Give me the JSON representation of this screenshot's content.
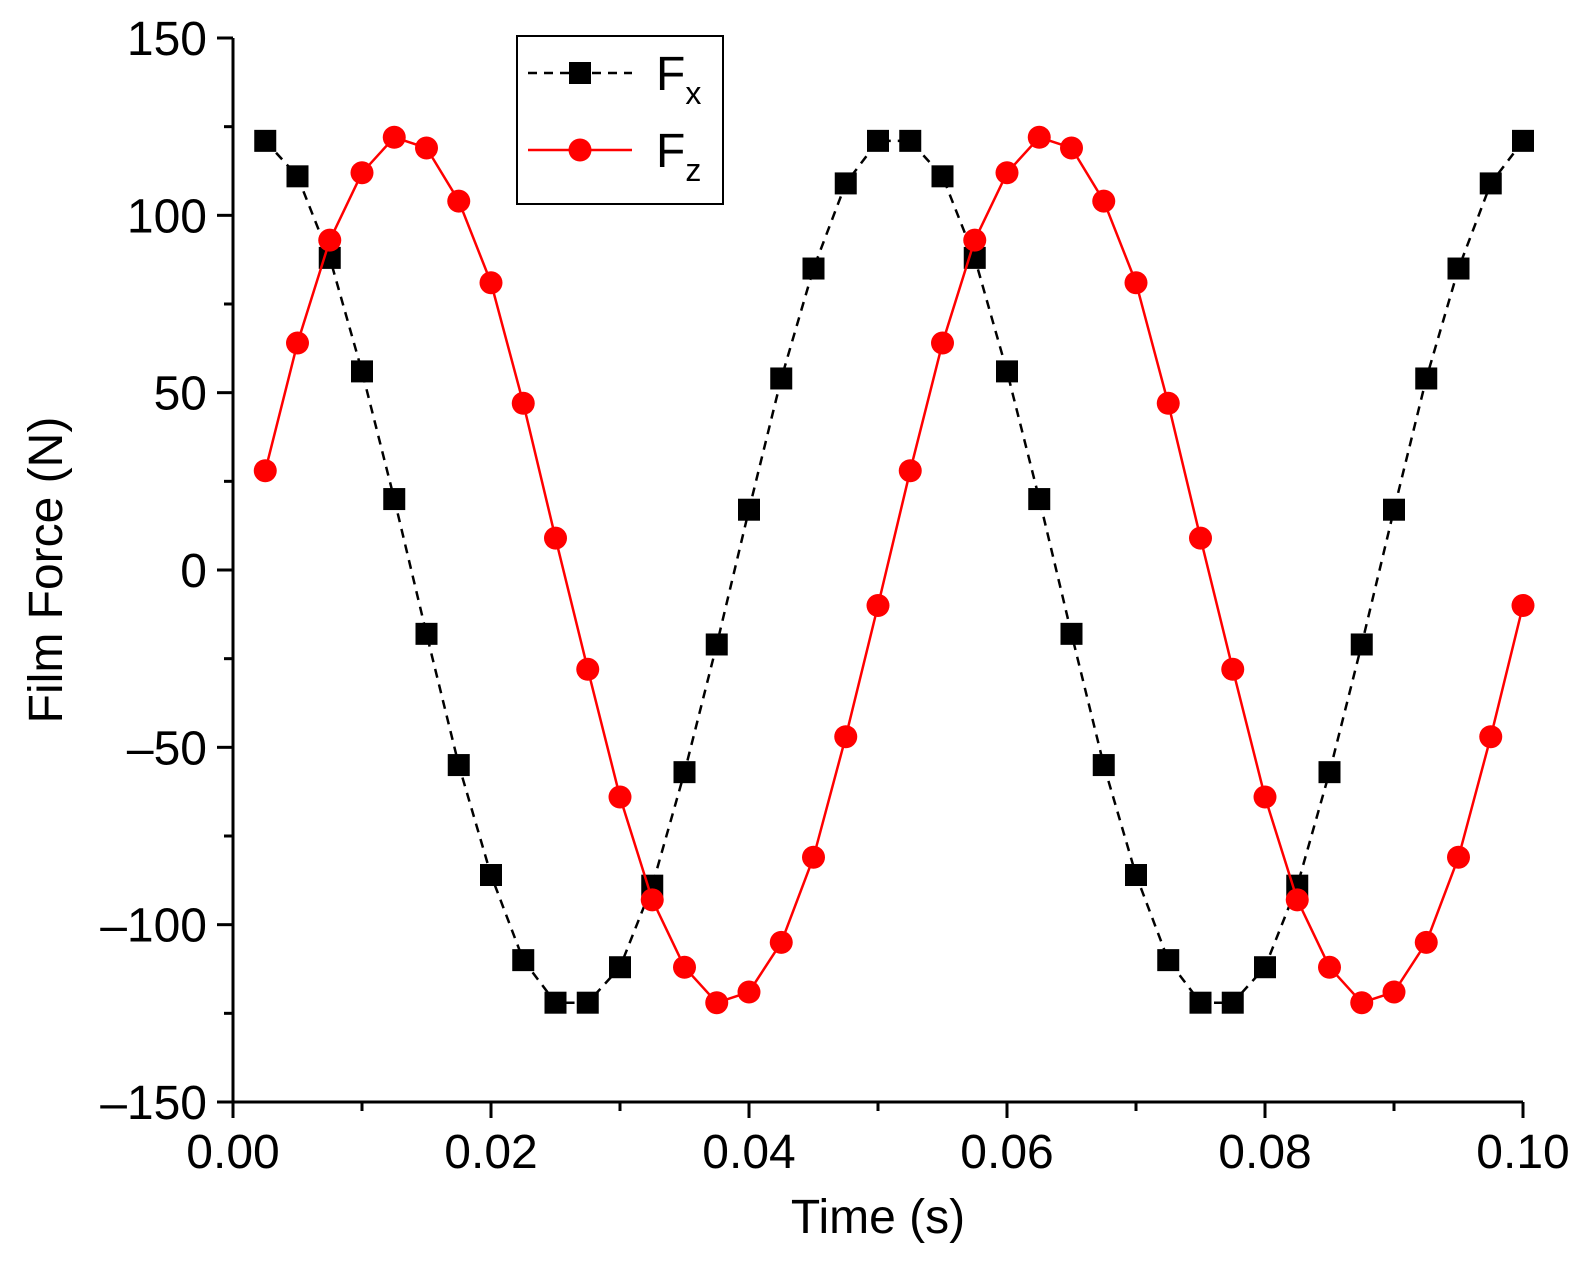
{
  "chart_data": {
    "type": "line",
    "title": "",
    "xlabel": "Time (s)",
    "ylabel": "Film Force (N)",
    "xlim": [
      0.0,
      0.1
    ],
    "ylim": [
      -150,
      150
    ],
    "xticks": [
      "0.00",
      "0.02",
      "0.04",
      "0.06",
      "0.08",
      "0.10"
    ],
    "yticks": [
      "–150",
      "–100",
      "–50",
      "0",
      "50",
      "100",
      "150"
    ],
    "grid": false,
    "legend_position": "top-left",
    "x": [
      0.0025,
      0.005,
      0.0075,
      0.01,
      0.0125,
      0.015,
      0.0175,
      0.02,
      0.0225,
      0.025,
      0.0275,
      0.03,
      0.0325,
      0.035,
      0.0375,
      0.04,
      0.0425,
      0.045,
      0.0475,
      0.05,
      0.0525,
      0.055,
      0.0575,
      0.06,
      0.0625,
      0.065,
      0.0675,
      0.07,
      0.0725,
      0.075,
      0.0775,
      0.08,
      0.0825,
      0.085,
      0.0875,
      0.09,
      0.0925,
      0.095,
      0.0975,
      0.1
    ],
    "series": [
      {
        "name": "F",
        "subscript": "x",
        "color": "#000000",
        "marker": "square",
        "line_style": "dashed",
        "values": [
          121,
          111,
          88,
          56,
          20,
          -18,
          -55,
          -86,
          -110,
          -122,
          -122,
          -112,
          -89,
          -57,
          -21,
          17,
          54,
          85,
          109,
          121,
          121,
          111,
          88,
          56,
          20,
          -18,
          -55,
          -86,
          -110,
          -122,
          -122,
          -112,
          -89,
          -57,
          -21,
          17,
          54,
          85,
          109,
          121
        ]
      },
      {
        "name": "F",
        "subscript": "z",
        "color": "#ff0000",
        "marker": "circle",
        "line_style": "solid",
        "values": [
          28,
          64,
          93,
          112,
          122,
          119,
          104,
          81,
          47,
          9,
          -28,
          -64,
          -93,
          -112,
          -122,
          -119,
          -105,
          -81,
          -47,
          -10,
          28,
          64,
          93,
          112,
          122,
          119,
          104,
          81,
          47,
          9,
          -28,
          -64,
          -93,
          -112,
          -122,
          -119,
          -105,
          -81,
          -47,
          -10
        ]
      }
    ]
  }
}
